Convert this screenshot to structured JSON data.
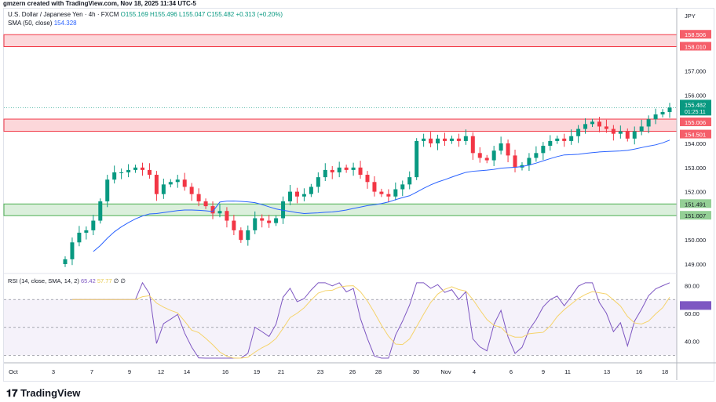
{
  "credit": "gmzern created with TradingView.com, Nov 18, 2025 11:34 UTC-5",
  "legend": {
    "symbol": "U.S. Dollar / Japanese Yen · 4h · FXCM",
    "open": "O155.169",
    "high": "H155.496",
    "low": "L155.047",
    "close": "C155.482",
    "change": "+0.313 (+0.20%)",
    "sma_label": "SMA (50, close)",
    "sma_value": "154.328"
  },
  "currency": "JPY",
  "rsi_legend": {
    "label": "RSI (14, close, SMA, 14, 2)",
    "rsi": "65.42",
    "rsi_sma": "57.77",
    "extra": "∅ ∅"
  },
  "countdown": "01:25:11",
  "logo": "TradingView",
  "colors": {
    "up": "#089981",
    "down": "#f23645",
    "sma": "#2962ff",
    "rsi": "#7e57c2",
    "rsi_sma": "#f5d36a",
    "support": "#4caf50",
    "resistance": "#f23645"
  },
  "chart_data": {
    "type": "candlestick",
    "price_ticks": [
      "157.000",
      "156.000",
      "154.000",
      "153.000",
      "152.000",
      "150.000",
      "149.000"
    ],
    "rsi_ticks": [
      "80.00",
      "60.00",
      "40.00"
    ],
    "x_ticks": [
      "Oct",
      "3",
      "7",
      "9",
      "12",
      "14",
      "16",
      "19",
      "21",
      "23",
      "26",
      "28",
      "30",
      "Nov",
      "4",
      "6",
      "9",
      "11",
      "13",
      "16",
      "18"
    ],
    "zones": [
      {
        "top": 158.506,
        "bottom": 158.01,
        "type": "resistance",
        "labels": [
          "158.506",
          "158.010"
        ]
      },
      {
        "top": 155.006,
        "bottom": 154.501,
        "type": "resistance",
        "labels": [
          "155.006",
          "154.501"
        ]
      },
      {
        "top": 151.491,
        "bottom": 151.007,
        "type": "support",
        "labels": [
          "151.491",
          "151.007"
        ]
      }
    ],
    "last_price": "155.482",
    "closes": [
      149.2,
      149.9,
      150.3,
      150.4,
      150.8,
      151.6,
      152.5,
      152.8,
      152.8,
      152.9,
      153.0,
      152.9,
      152.7,
      151.9,
      152.3,
      152.4,
      152.5,
      152.2,
      151.9,
      151.6,
      151.4,
      151.1,
      151.2,
      150.8,
      150.4,
      150.0,
      150.4,
      150.9,
      150.8,
      150.7,
      150.9,
      151.6,
      152.0,
      151.8,
      151.9,
      152.2,
      152.6,
      152.9,
      152.8,
      153.0,
      152.9,
      153.0,
      152.7,
      152.4,
      152.0,
      151.9,
      151.8,
      152.1,
      152.3,
      152.6,
      154.1,
      154.2,
      154.0,
      154.2,
      154.1,
      154.2,
      154.1,
      154.3,
      153.6,
      153.4,
      153.3,
      153.7,
      154.0,
      153.5,
      153.0,
      153.1,
      153.4,
      153.6,
      153.9,
      154.1,
      154.2,
      154.1,
      154.3,
      154.6,
      154.8,
      154.9,
      154.7,
      154.6,
      154.4,
      154.5,
      154.2,
      154.5,
      154.7,
      155.0,
      155.2,
      155.3,
      155.482
    ]
  }
}
